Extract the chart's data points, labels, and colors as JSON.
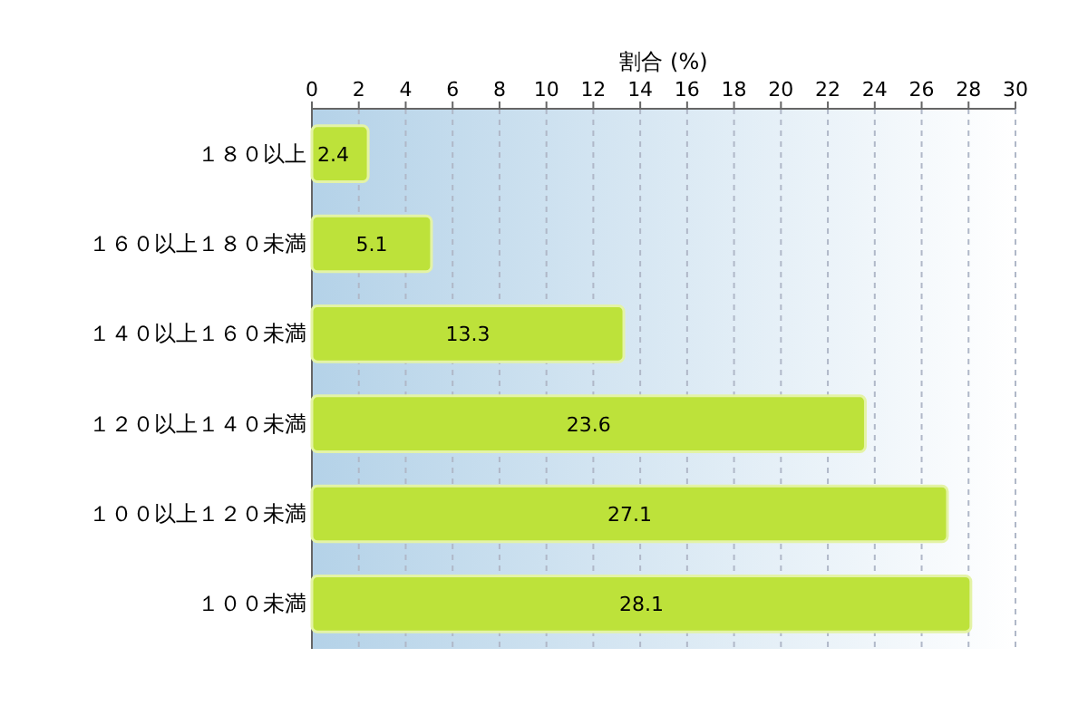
{
  "chart_data": {
    "type": "bar",
    "orientation": "horizontal",
    "xlabel": "割合 (%)",
    "categories": [
      "１８０以上",
      "１６０以上１８０未満",
      "１４０以上１６０未満",
      "１２０以上１４０未満",
      "１００以上１２０未満",
      "１００未満"
    ],
    "values": [
      2.4,
      5.1,
      13.3,
      23.6,
      27.1,
      28.1
    ],
    "color": "#bde23a",
    "xlim": [
      0,
      30
    ],
    "xticks": [
      0,
      2,
      4,
      6,
      8,
      10,
      12,
      14,
      16,
      18,
      20,
      22,
      24,
      26,
      28,
      30
    ],
    "grid": "x",
    "data_labels": true
  }
}
